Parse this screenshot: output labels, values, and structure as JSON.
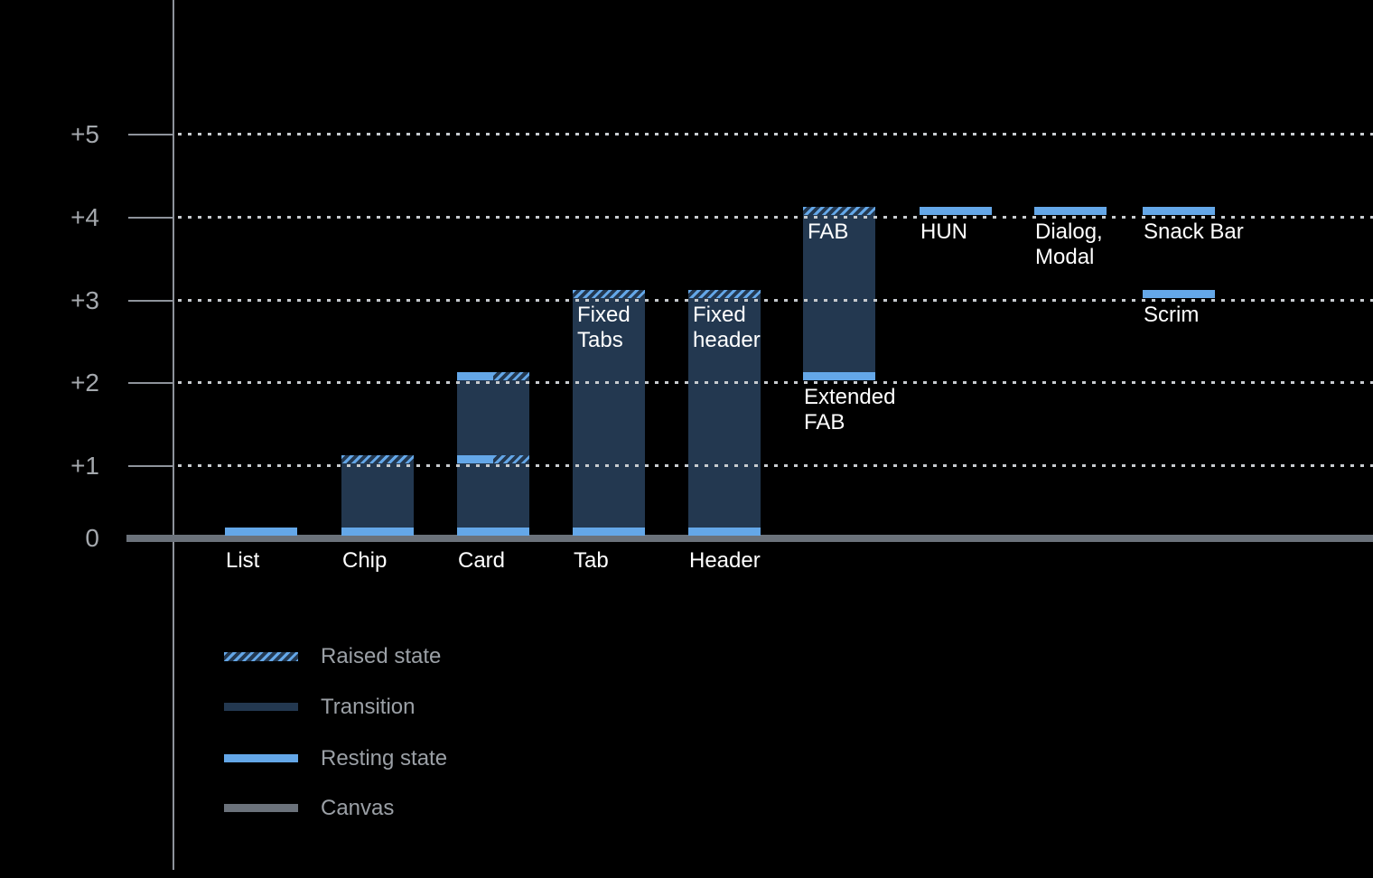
{
  "colors": {
    "background": "#000000",
    "resting": "#64A7E8",
    "transition": "#233850",
    "canvas": "#6B727B",
    "axis": "#8E939B",
    "gridline": "#C7CBCF",
    "tick_label": "#A4A8AD",
    "bar_label": "#FFFFFF",
    "legend_text": "#9BA0A6"
  },
  "chart_data": {
    "type": "bar",
    "ylim": [
      0,
      5
    ],
    "grid": "dotted horizontal gridlines at +1 through +5, solid thick canvas baseline at 0",
    "legend_position": "bottom-left",
    "yticks": [
      {
        "label": "+5",
        "value": 5
      },
      {
        "label": "+4",
        "value": 4
      },
      {
        "label": "+3",
        "value": 3
      },
      {
        "label": "+2",
        "value": 2
      },
      {
        "label": "+1",
        "value": 1
      },
      {
        "label": "0",
        "value": 0
      }
    ],
    "legend": [
      {
        "label": "Raised state",
        "swatch": "raised"
      },
      {
        "label": "Transition",
        "swatch": "transition"
      },
      {
        "label": "Resting state",
        "swatch": "resting"
      },
      {
        "label": "Canvas",
        "swatch": "canvas"
      }
    ],
    "bars": [
      {
        "name": "list",
        "axis_label": "List",
        "segments": [
          {
            "kind": "resting",
            "level": 0
          }
        ]
      },
      {
        "name": "chip",
        "axis_label": "Chip",
        "segments": [
          {
            "kind": "resting",
            "level": 0
          },
          {
            "kind": "transition",
            "from": 0,
            "to": 1
          },
          {
            "kind": "raised",
            "level": 1
          }
        ]
      },
      {
        "name": "card",
        "axis_label": "Card",
        "segments": [
          {
            "kind": "resting",
            "level": 0
          },
          {
            "kind": "transition",
            "from": 0,
            "to": 1
          },
          {
            "kind": "resting-raised",
            "level": 1
          },
          {
            "kind": "transition",
            "from": 1,
            "to": 2
          },
          {
            "kind": "resting-raised",
            "level": 2
          }
        ]
      },
      {
        "name": "tab",
        "axis_label": "Tab",
        "inner_label": "Fixed\nTabs",
        "segments": [
          {
            "kind": "resting",
            "level": 0
          },
          {
            "kind": "transition",
            "from": 0,
            "to": 3
          },
          {
            "kind": "raised",
            "level": 3
          }
        ]
      },
      {
        "name": "header",
        "axis_label": "Header",
        "inner_label": "Fixed\nheader",
        "segments": [
          {
            "kind": "resting",
            "level": 0
          },
          {
            "kind": "transition",
            "from": 0,
            "to": 3
          },
          {
            "kind": "raised",
            "level": 3
          }
        ]
      },
      {
        "name": "fab",
        "inner_label": "FAB",
        "below_label": "Extended\nFAB",
        "below_level": 2,
        "segments": [
          {
            "kind": "resting",
            "level": 2
          },
          {
            "kind": "transition",
            "from": 2,
            "to": 4
          },
          {
            "kind": "raised",
            "level": 4
          }
        ]
      },
      {
        "name": "hun",
        "below_label": "HUN",
        "below_level": 4,
        "segments": [
          {
            "kind": "resting",
            "level": 4
          }
        ]
      },
      {
        "name": "dialog-modal",
        "below_label": "Dialog,\nModal",
        "below_level": 4,
        "segments": [
          {
            "kind": "resting",
            "level": 4
          }
        ]
      },
      {
        "name": "snack-bar",
        "below_label": "Snack Bar",
        "below_level": 4,
        "segments": [
          {
            "kind": "resting",
            "level": 4
          }
        ]
      },
      {
        "name": "scrim",
        "below_label": "Scrim",
        "below_level": 3,
        "segments": [
          {
            "kind": "resting",
            "level": 3
          }
        ]
      }
    ]
  }
}
